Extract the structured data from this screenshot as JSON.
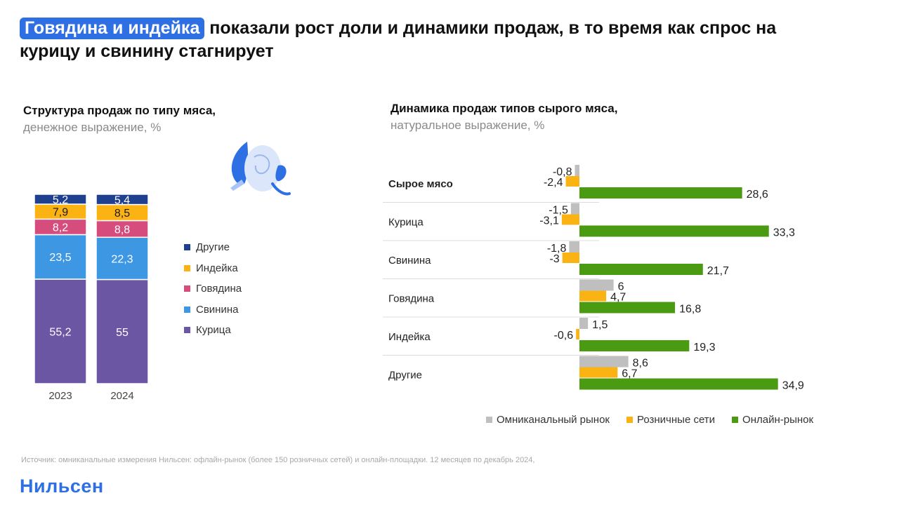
{
  "headline": {
    "highlight": "Говядина и индейка",
    "rest": " показали рост доли и динамики продаж, в то время как спрос на курицу и свинину стагнирует"
  },
  "left_subtitle": {
    "bold": "Структура продаж по типу мяса,",
    "light": "денежное выражение, %"
  },
  "right_subtitle": {
    "bold": "Динамика продаж типов сырого мяса,",
    "light": "натуральное выражение, %"
  },
  "colors": {
    "brand": "#2f6fe4",
    "others": "#1f3f8f",
    "turkey": "#fbb314",
    "beef": "#d64d7d",
    "pork": "#3e97e3",
    "chicken": "#6b56a3",
    "omni": "#bfbfbf",
    "retail": "#fbb314",
    "online": "#4a9a12"
  },
  "chart_data": [
    {
      "type": "bar",
      "stacked": true,
      "title": "Структура продаж по типу мяса,",
      "subtitle": "денежное выражение, %",
      "categories": [
        "2023",
        "2024"
      ],
      "series": [
        {
          "name": "Курица",
          "values": [
            55.2,
            55
          ],
          "labels": [
            "55,2",
            "55"
          ]
        },
        {
          "name": "Свинина",
          "values": [
            23.5,
            22.3
          ],
          "labels": [
            "23,5",
            "22,3"
          ]
        },
        {
          "name": "Говядина",
          "values": [
            8.2,
            8.8
          ],
          "labels": [
            "8,2",
            "8,8"
          ]
        },
        {
          "name": "Индейка",
          "values": [
            7.9,
            8.5
          ],
          "labels": [
            "7,9",
            "8,5"
          ]
        },
        {
          "name": "Другие",
          "values": [
            5.2,
            5.4
          ],
          "labels": [
            "5,2",
            "5,4"
          ]
        }
      ],
      "legend_order": [
        "Другие",
        "Индейка",
        "Говядина",
        "Свинина",
        "Курица"
      ],
      "legend": "right"
    },
    {
      "type": "bar",
      "orientation": "horizontal",
      "title": "Динамика продаж типов сырого мяса,",
      "subtitle": "натуральное выражение, %",
      "categories": [
        "Сырое мясо",
        "Курица",
        "Свинина",
        "Говядина",
        "Индейка",
        "Другие"
      ],
      "series": [
        {
          "name": "Омниканальный рынок",
          "values": [
            -0.8,
            -1.5,
            -1.8,
            6,
            1.5,
            8.6
          ],
          "labels": [
            "-0,8",
            "-1,5",
            "-1,8",
            "6",
            "1,5",
            "8,6"
          ]
        },
        {
          "name": "Розничные сети",
          "values": [
            -2.4,
            -3.1,
            -3,
            4.7,
            -0.6,
            6.7
          ],
          "labels": [
            "-2,4",
            "-3,1",
            "-3",
            "4,7",
            "-0,6",
            "6,7"
          ]
        },
        {
          "name": "Онлайн-рынок",
          "values": [
            28.6,
            33.3,
            21.7,
            16.8,
            19.3,
            34.9
          ],
          "labels": [
            "28,6",
            "33,3",
            "21,7",
            "16,8",
            "19,3",
            "34,9"
          ]
        }
      ],
      "legend": "bottom"
    }
  ],
  "source": "Источник: омниканальные измерения Нильсен: офлайн-рынок (более 150 розничных сетей) и онлайн-площадки. 12 месяцев по декабрь 2024,",
  "logo": "Нильсен"
}
